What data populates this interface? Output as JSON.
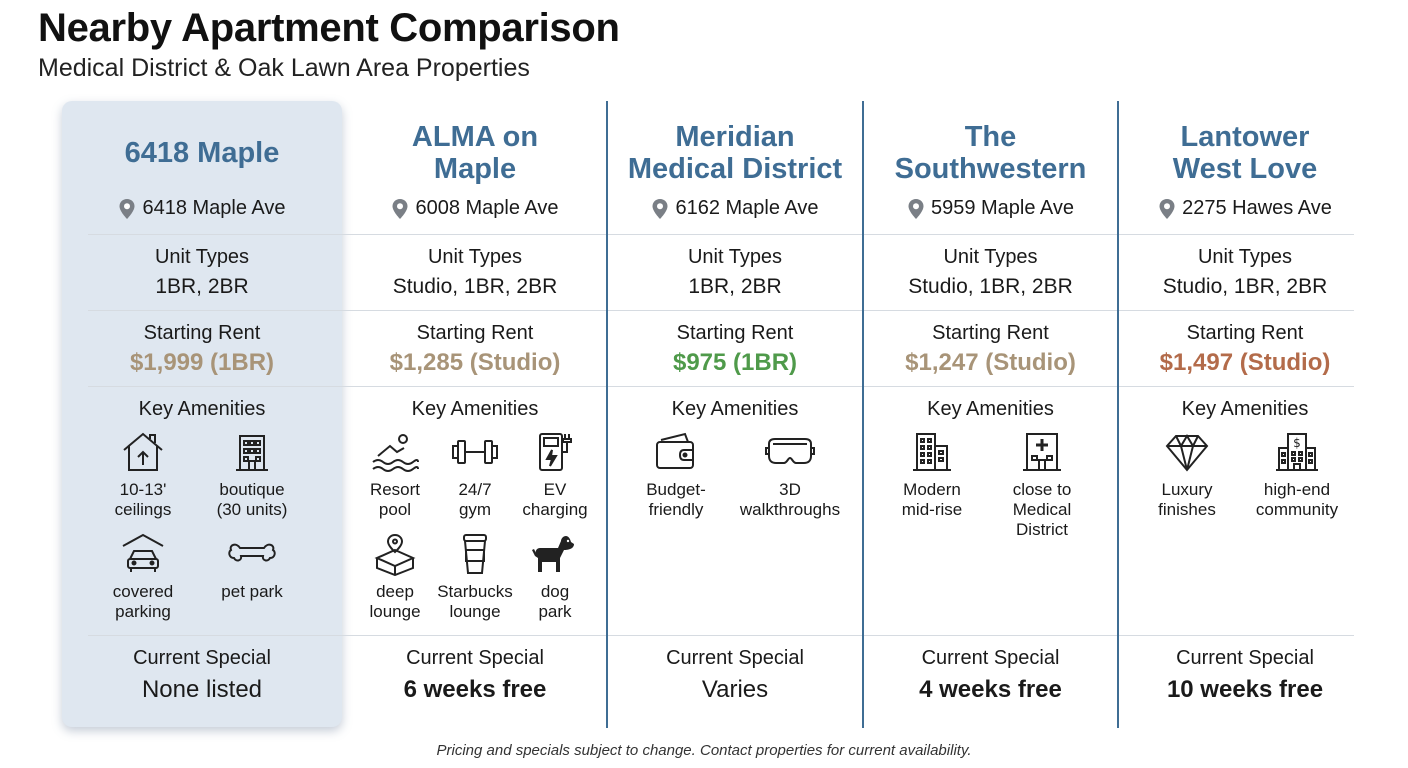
{
  "header": {
    "title": "Nearby Apartment Comparison",
    "subtitle": "Medical District & Oak Lawn Area Properties"
  },
  "labels": {
    "unit_types": "Unit Types",
    "starting_rent": "Starting Rent",
    "key_amenities": "Key Amenities",
    "current_special": "Current Special"
  },
  "properties": [
    {
      "name_line1": "6418 Maple",
      "name_line2": "",
      "address": "6418 Maple Ave",
      "unit_types": "1BR, 2BR",
      "starting_rent": "$1,999 (1BR)",
      "rent_color": "#a89478",
      "amenities": [
        {
          "icon": "house-height-icon",
          "line1": "10-13'",
          "line2": "ceilings"
        },
        {
          "icon": "building-icon",
          "line1": "boutique",
          "line2": "(30 units)"
        },
        {
          "icon": "car-garage-icon",
          "line1": "covered",
          "line2": "parking"
        },
        {
          "icon": "bone-icon",
          "line1": "pet park",
          "line2": ""
        }
      ],
      "special": "None listed",
      "special_bold": false
    },
    {
      "name_line1": "ALMA on",
      "name_line2": "Maple",
      "address": "6008 Maple Ave",
      "unit_types": "Studio, 1BR, 2BR",
      "starting_rent": "$1,285 (Studio)",
      "rent_color": "#a89478",
      "amenities": [
        {
          "icon": "swimmer-icon",
          "line1": "Resort",
          "line2": "pool"
        },
        {
          "icon": "dumbbell-icon",
          "line1": "24/7",
          "line2": "gym"
        },
        {
          "icon": "ev-charger-icon",
          "line1": "EV",
          "line2": "charging"
        },
        {
          "icon": "map-pin-box-icon",
          "line1": "deep",
          "line2": "lounge"
        },
        {
          "icon": "coffee-cup-icon",
          "line1": "Starbucks",
          "line2": "lounge"
        },
        {
          "icon": "dog-icon",
          "line1": "dog",
          "line2": "park"
        }
      ],
      "special": "6 weeks free",
      "special_bold": true
    },
    {
      "name_line1": "Meridian",
      "name_line2": "Medical District",
      "address": "6162 Maple Ave",
      "unit_types": "1BR, 2BR",
      "starting_rent": "$975 (1BR)",
      "rent_color": "#4f9a4a",
      "amenities": [
        {
          "icon": "wallet-icon",
          "line1": "Budget-",
          "line2": "friendly"
        },
        {
          "icon": "vr-headset-icon",
          "line1": "3D",
          "line2": "walkthroughs"
        }
      ],
      "special": "Varies",
      "special_bold": false
    },
    {
      "name_line1": "The",
      "name_line2": "Southwestern",
      "address": "5959 Maple Ave",
      "unit_types": "Studio, 1BR, 2BR",
      "starting_rent": "$1,247 (Studio)",
      "rent_color": "#a89478",
      "amenities": [
        {
          "icon": "midrise-building-icon",
          "line1": "Modern",
          "line2": "mid-rise"
        },
        {
          "icon": "hospital-icon",
          "line1": "close to",
          "line2": "Medical",
          "line3": "District"
        }
      ],
      "special": "4 weeks free",
      "special_bold": true
    },
    {
      "name_line1": "Lantower",
      "name_line2": "West Love",
      "address": "2275 Hawes Ave",
      "unit_types": "Studio, 1BR, 2BR",
      "starting_rent": "$1,497 (Studio)",
      "rent_color": "#b36b4a",
      "amenities": [
        {
          "icon": "diamond-icon",
          "line1": "Luxury",
          "line2": "finishes"
        },
        {
          "icon": "bank-building-icon",
          "line1": "high-end",
          "line2": "community"
        }
      ],
      "special": "10 weeks free",
      "special_bold": true
    }
  ],
  "footer": "Pricing and specials subject to change. Contact properties for current availability."
}
